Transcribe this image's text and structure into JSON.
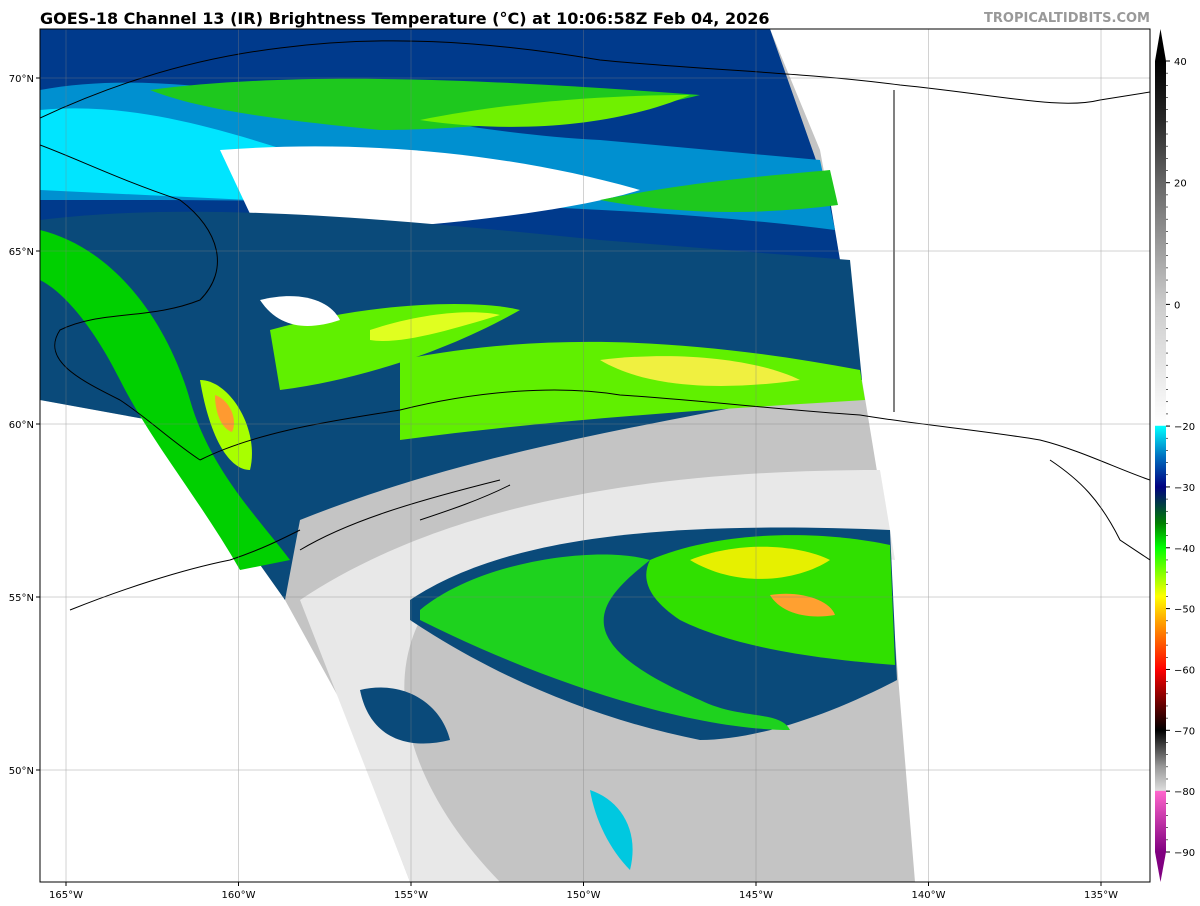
{
  "title": "GOES-18 Channel 13 (IR) Brightness Temperature (°C) at 10:06:58Z Feb 04, 2026",
  "brand": "TROPICALTIDBITS.COM",
  "map": {
    "extent_lon": [
      -166,
      -133.8
    ],
    "extent_lat": [
      46.7,
      71.4
    ],
    "lon_ticks": [
      {
        "value": -165,
        "label": "165°W"
      },
      {
        "value": -160,
        "label": "160°W"
      },
      {
        "value": -155,
        "label": "155°W"
      },
      {
        "value": -150,
        "label": "150°W"
      },
      {
        "value": -145,
        "label": "145°W"
      },
      {
        "value": -140,
        "label": "140°W"
      },
      {
        "value": -135,
        "label": "135°W"
      }
    ],
    "lat_ticks": [
      {
        "value": 70,
        "label": "70°N"
      },
      {
        "value": 65,
        "label": "65°N"
      },
      {
        "value": 60,
        "label": "60°N"
      },
      {
        "value": 55,
        "label": "55°N"
      },
      {
        "value": 50,
        "label": "50°N"
      }
    ],
    "grid": true
  },
  "colorbar": {
    "range": [
      -90,
      40
    ],
    "ticks": [
      {
        "value": 40,
        "label": "40"
      },
      {
        "value": 20,
        "label": "20"
      },
      {
        "value": 0,
        "label": "0"
      },
      {
        "value": -20,
        "label": "−20"
      },
      {
        "value": -30,
        "label": "−30"
      },
      {
        "value": -40,
        "label": "−40"
      },
      {
        "value": -50,
        "label": "−50"
      },
      {
        "value": -60,
        "label": "−60"
      },
      {
        "value": -70,
        "label": "−70"
      },
      {
        "value": -80,
        "label": "−80"
      },
      {
        "value": -90,
        "label": "−90"
      }
    ],
    "stops": [
      {
        "value": 40,
        "color": "#000000"
      },
      {
        "value": 30,
        "color": "#2a2a2a"
      },
      {
        "value": 20,
        "color": "#666666"
      },
      {
        "value": 0,
        "color": "#cccccc"
      },
      {
        "value": -19.9,
        "color": "#ffffff"
      },
      {
        "value": -20,
        "color": "#00ffff"
      },
      {
        "value": -25,
        "color": "#0070c0"
      },
      {
        "value": -30,
        "color": "#000080"
      },
      {
        "value": -33,
        "color": "#004040"
      },
      {
        "value": -36,
        "color": "#008000"
      },
      {
        "value": -40,
        "color": "#00ff00"
      },
      {
        "value": -48,
        "color": "#ffff00"
      },
      {
        "value": -52,
        "color": "#ffa500"
      },
      {
        "value": -60,
        "color": "#ff0000"
      },
      {
        "value": -66,
        "color": "#600000"
      },
      {
        "value": -70,
        "color": "#000000"
      },
      {
        "value": -76,
        "color": "#999999"
      },
      {
        "value": -79.9,
        "color": "#dddddd"
      },
      {
        "value": -80,
        "color": "#ff66cc"
      },
      {
        "value": -90,
        "color": "#800080"
      }
    ]
  }
}
